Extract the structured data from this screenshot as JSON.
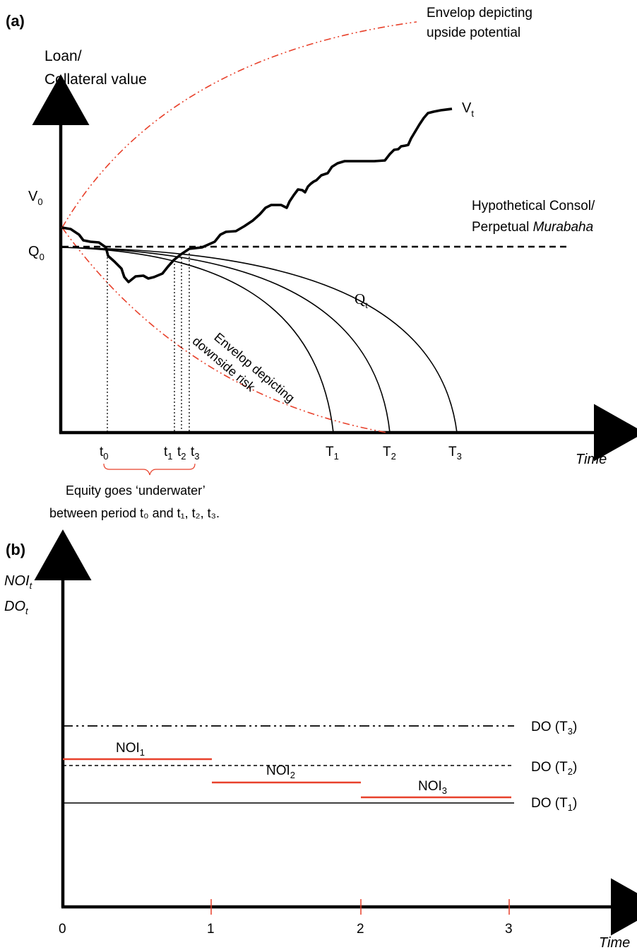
{
  "panel_a": {
    "label": "(a)",
    "y_label_line1": "Loan/",
    "y_label_line2": "Collateral value",
    "x_label": "Time",
    "upside_line1": "Envelop depicting",
    "upside_line2": "upside potential",
    "downside_line1": "Envelop depicting",
    "downside_line2": "downside risk",
    "consol_line1": "Hypothetical Consol/",
    "consol_line2_a": "Perpetual ",
    "consol_line2_b": "Murabaha",
    "v0": {
      "main": "V",
      "sub": "0"
    },
    "q0": {
      "main": "Q",
      "sub": "0"
    },
    "vt": {
      "main": "V",
      "sub": "t"
    },
    "qt": {
      "main": "Q",
      "sub": "t"
    },
    "t_ticks": [
      {
        "main": "t",
        "sub": "0"
      },
      {
        "main": "t",
        "sub": "1"
      },
      {
        "main": "t",
        "sub": "2"
      },
      {
        "main": "t",
        "sub": "3"
      }
    ],
    "T_ticks": [
      {
        "main": "T",
        "sub": "1"
      },
      {
        "main": "T",
        "sub": "2"
      },
      {
        "main": "T",
        "sub": "3"
      }
    ],
    "note_line1": "Equity goes ‘underwater’",
    "note_line2": "between period t₀ and t₁, t₂, t₃.",
    "colors": {
      "envelope": "#e8412b",
      "axis": "#000000"
    }
  },
  "panel_b": {
    "label": "(b)",
    "y_label_line1": {
      "main": "NOI",
      "sub": "t"
    },
    "y_label_line2": {
      "main": "DO",
      "sub": "t"
    },
    "x_label": "Time",
    "x_ticks": [
      "0",
      "1",
      "2",
      "3"
    ],
    "do_labels": [
      {
        "main": "DO (T",
        "sub": "3",
        "end": ")"
      },
      {
        "main": "DO (T",
        "sub": "2",
        "end": ")"
      },
      {
        "main": "DO (T",
        "sub": "1",
        "end": ")"
      }
    ],
    "noi_labels": [
      {
        "main": "NOI",
        "sub": "1"
      },
      {
        "main": "NOI",
        "sub": "2"
      },
      {
        "main": "NOI",
        "sub": "3"
      }
    ],
    "colors": {
      "noi": "#e8412b",
      "do": "#000000"
    }
  }
}
